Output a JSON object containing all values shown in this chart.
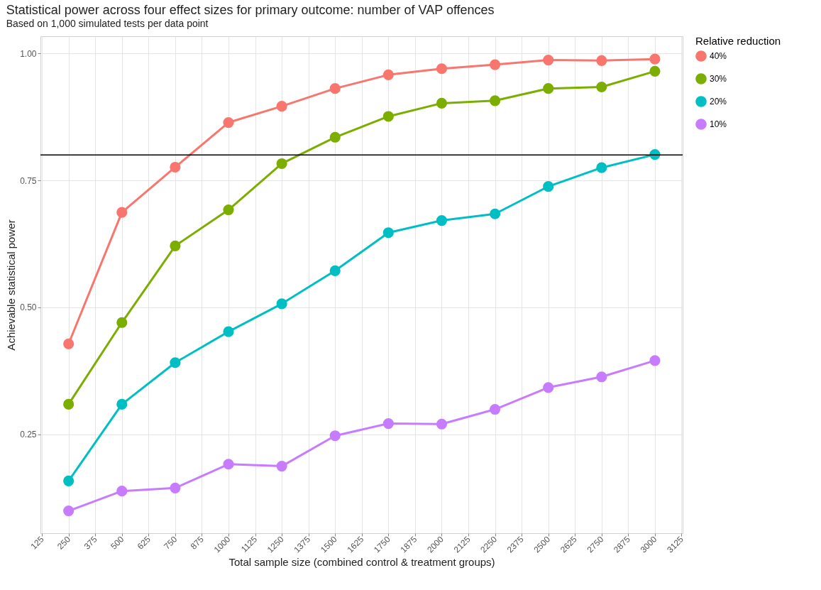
{
  "chart_data": {
    "type": "line",
    "title": "Statistical power across four effect sizes for primary outcome: number of VAP offences",
    "subtitle": "Based on 1,000 simulated tests per data point",
    "xlabel": "Total sample size (combined control & treatment groups)",
    "ylabel": "Achievable statistical power",
    "legend_title": "Relative reduction",
    "x": [
      250,
      500,
      750,
      1000,
      1250,
      1500,
      1750,
      2000,
      2250,
      2500,
      2750,
      3000
    ],
    "series": [
      {
        "name": "40%",
        "color": "#f8766d",
        "values": [
          0.428,
          0.687,
          0.776,
          0.864,
          0.896,
          0.931,
          0.958,
          0.97,
          0.978,
          0.987,
          0.986,
          0.989
        ]
      },
      {
        "name": "30%",
        "color": "#7cae00",
        "values": [
          0.309,
          0.47,
          0.621,
          0.692,
          0.783,
          0.835,
          0.876,
          0.902,
          0.907,
          0.931,
          0.934,
          0.965
        ]
      },
      {
        "name": "20%",
        "color": "#00bfc4",
        "values": [
          0.158,
          0.309,
          0.391,
          0.452,
          0.507,
          0.572,
          0.647,
          0.671,
          0.684,
          0.738,
          0.775,
          0.801
        ]
      },
      {
        "name": "10%",
        "color": "#c77cff",
        "values": [
          0.099,
          0.138,
          0.144,
          0.191,
          0.187,
          0.247,
          0.271,
          0.27,
          0.299,
          0.342,
          0.363,
          0.395
        ]
      }
    ],
    "xlim": [
      118,
      3130
    ],
    "xticks": [
      125,
      250,
      375,
      500,
      625,
      750,
      875,
      1000,
      1125,
      1250,
      1375,
      1500,
      1625,
      1750,
      1875,
      2000,
      2125,
      2250,
      2375,
      2500,
      2625,
      2750,
      2875,
      3000,
      3125
    ],
    "ylim": [
      0.055,
      1.034
    ],
    "yticks": [
      0.25,
      {
        "value": 0.5,
        "label": "0.50"
      },
      0.75,
      {
        "value": 1.0,
        "label": "1.00"
      }
    ],
    "ref_lines": [
      {
        "axis": "y",
        "value": 0.8,
        "color": "#000000"
      }
    ],
    "grid": true,
    "legend": "right",
    "marker": "circle",
    "line_style": "solid"
  }
}
